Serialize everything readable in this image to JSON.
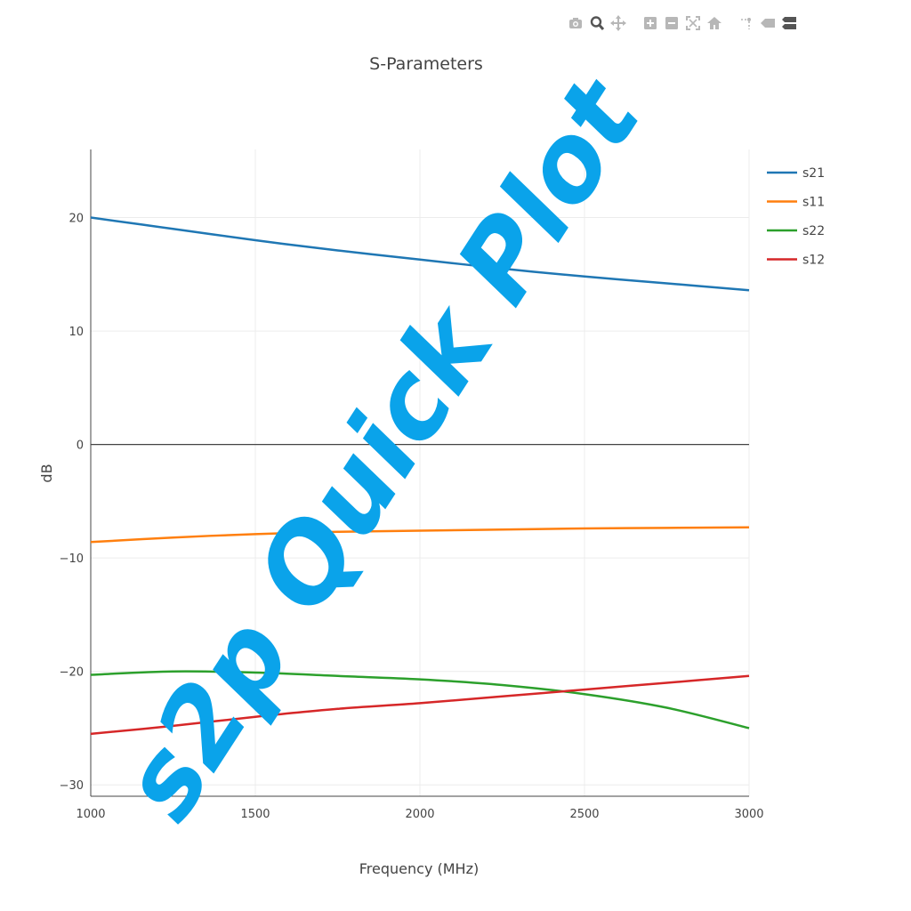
{
  "modebar": {
    "buttons": [
      {
        "name": "camera-icon"
      },
      {
        "name": "zoom-icon"
      },
      {
        "name": "pan-icon"
      },
      {
        "name": "zoom-in-icon"
      },
      {
        "name": "zoom-out-icon"
      },
      {
        "name": "autoscale-icon"
      },
      {
        "name": "home-icon"
      },
      {
        "name": "spike-lines-icon"
      },
      {
        "name": "hover-closest-icon"
      },
      {
        "name": "hover-compare-icon"
      }
    ],
    "color": "#b7b7b7"
  },
  "watermark": "s2p Quick Plot",
  "chart_data": {
    "type": "line",
    "title": "S-Parameters",
    "xlabel": "Frequency (MHz)",
    "ylabel": "dB",
    "xlim": [
      1000,
      3000
    ],
    "ylim": [
      -31,
      26
    ],
    "x_ticks": [
      1000,
      1500,
      2000,
      2500,
      3000
    ],
    "y_ticks": [
      20,
      10,
      0,
      -10,
      -20,
      -30
    ],
    "y_tick_labels": [
      "20",
      "10",
      "0",
      "−10",
      "−20",
      "−30"
    ],
    "grid": true,
    "zero_line": true,
    "legend_position": "top-right",
    "x": [
      1000,
      1250,
      1500,
      1750,
      2000,
      2250,
      2500,
      2750,
      3000
    ],
    "series": [
      {
        "name": "s21",
        "color": "#1f77b4",
        "values": [
          20.0,
          19.0,
          18.0,
          17.1,
          16.3,
          15.5,
          14.8,
          14.2,
          13.6
        ]
      },
      {
        "name": "s11",
        "color": "#ff7f0e",
        "values": [
          -8.6,
          -8.2,
          -7.9,
          -7.7,
          -7.6,
          -7.5,
          -7.4,
          -7.35,
          -7.3
        ]
      },
      {
        "name": "s22",
        "color": "#2ca02c",
        "values": [
          -20.3,
          -20.0,
          -20.1,
          -20.4,
          -20.7,
          -21.2,
          -22.0,
          -23.2,
          -25.0
        ]
      },
      {
        "name": "s12",
        "color": "#d62728",
        "values": [
          -25.5,
          -24.8,
          -24.0,
          -23.3,
          -22.8,
          -22.2,
          -21.6,
          -21.0,
          -20.4
        ]
      }
    ]
  }
}
